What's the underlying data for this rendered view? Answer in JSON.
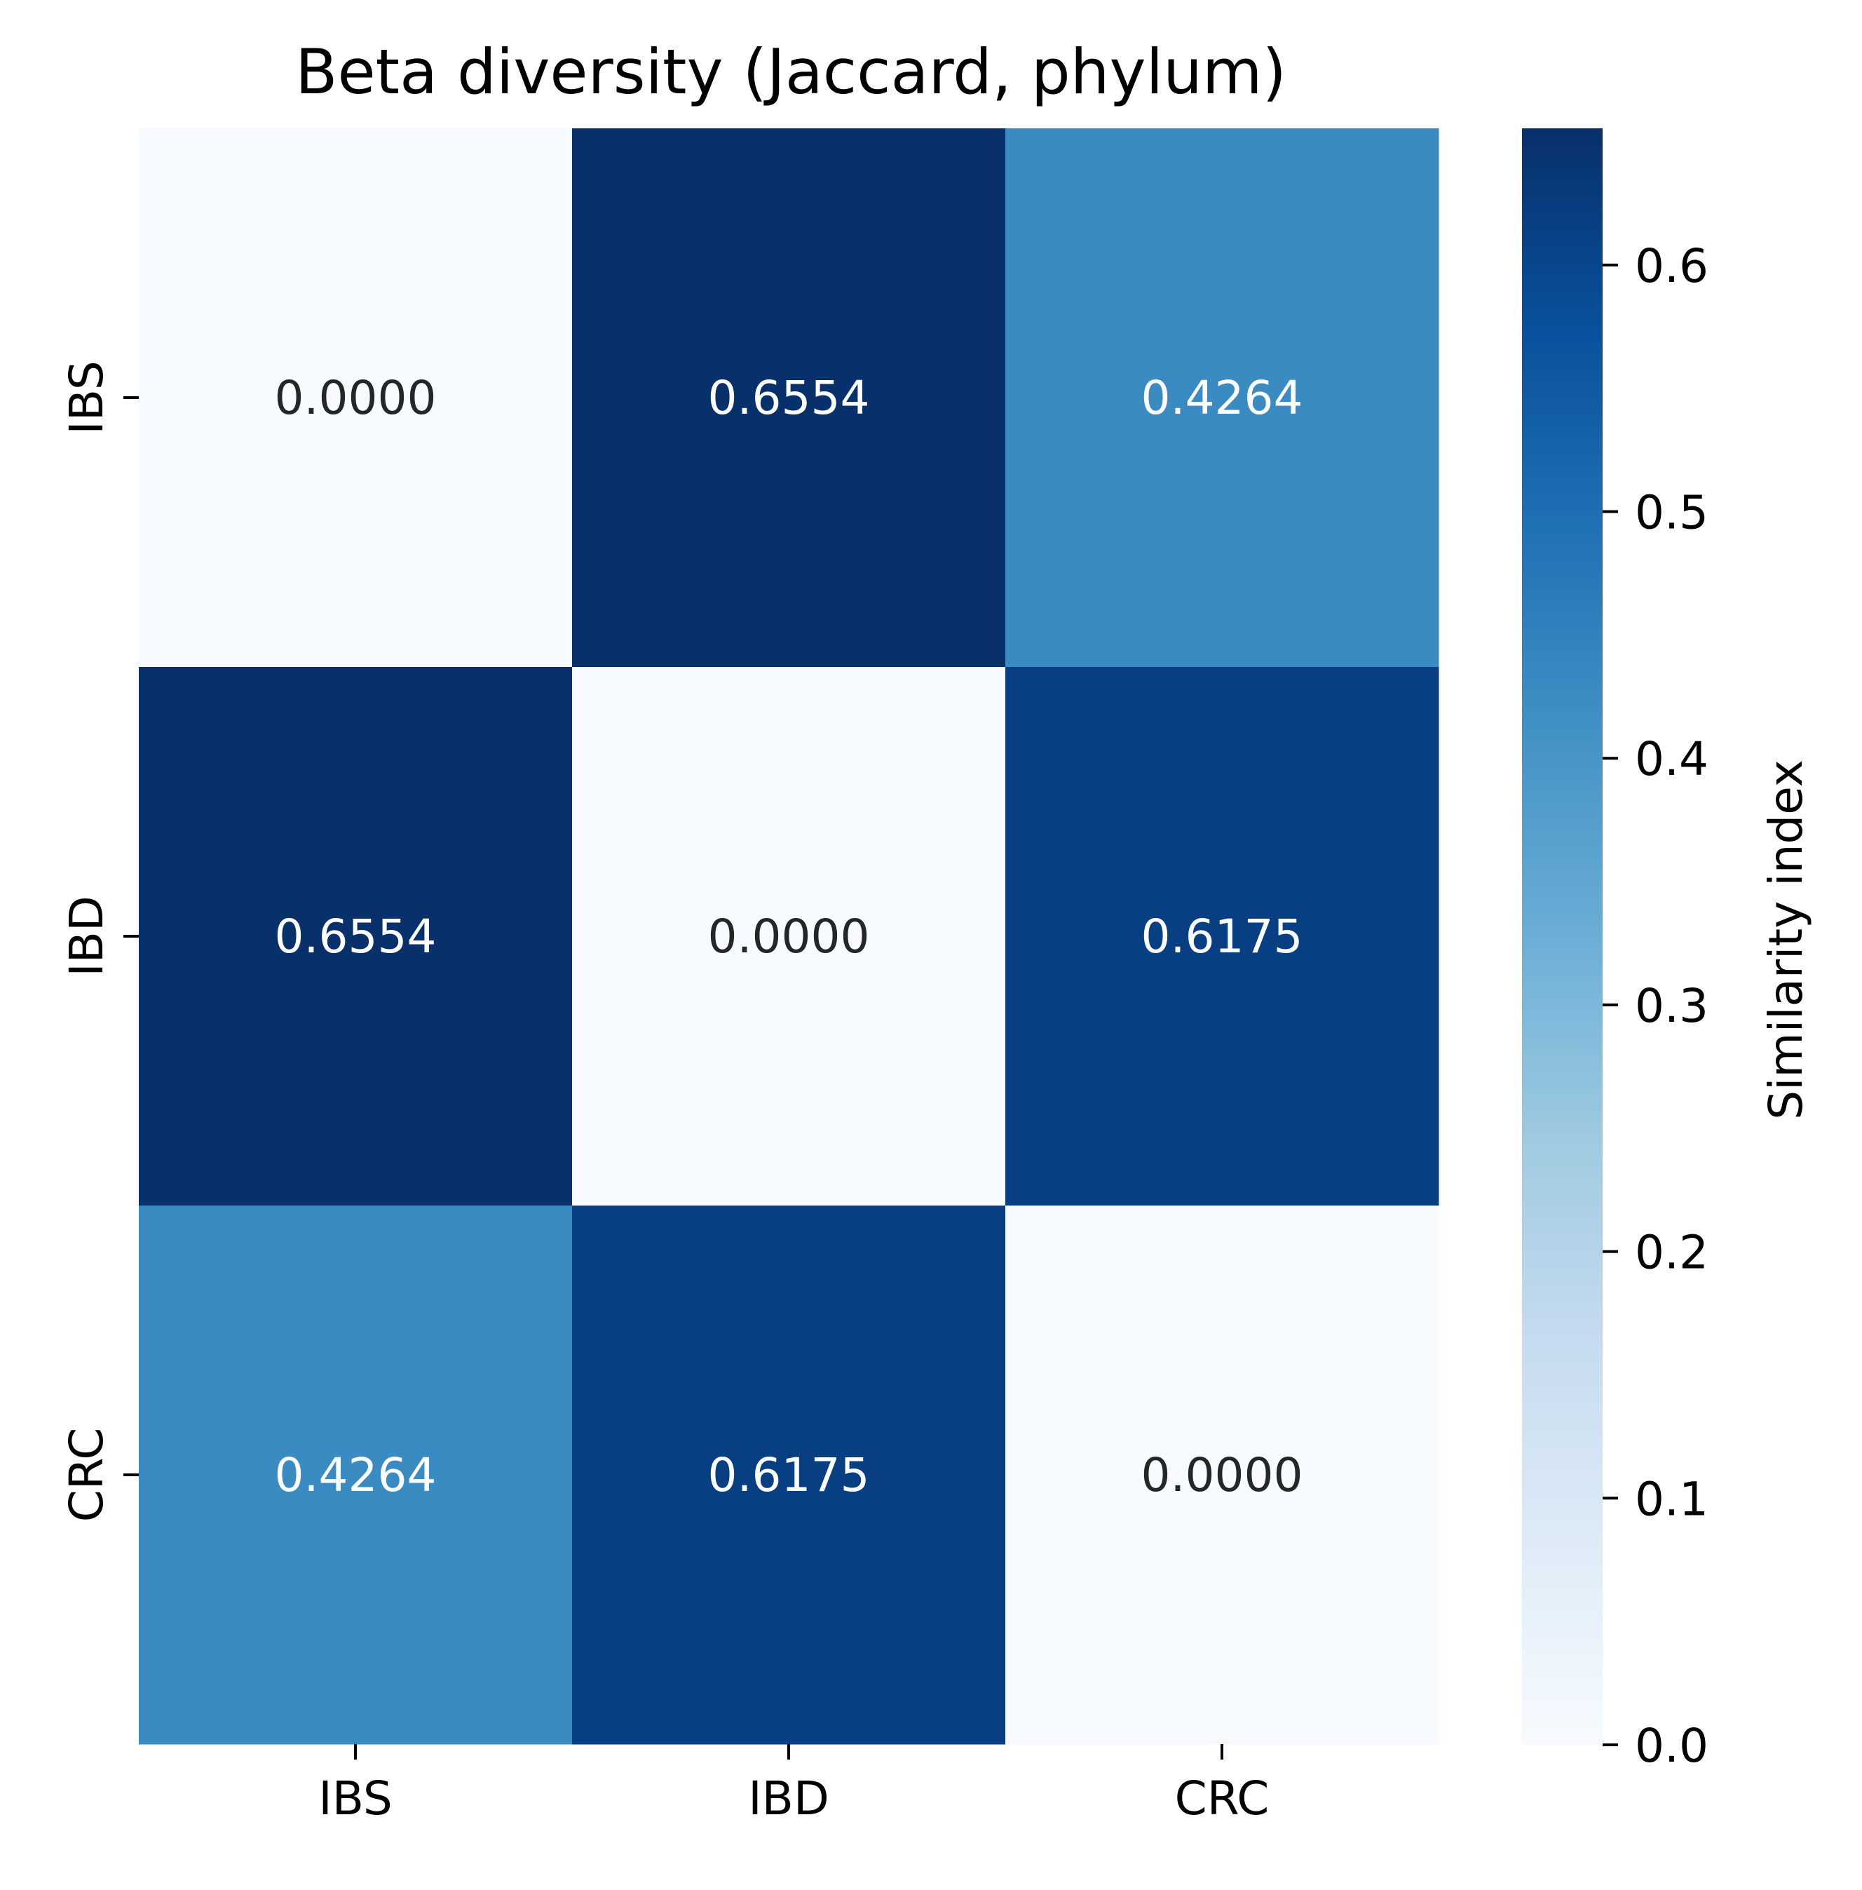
{
  "chart_data": {
    "type": "heatmap",
    "title": "Beta diversity (Jaccard, phylum)",
    "x_categories": [
      "IBS",
      "IBD",
      "CRC"
    ],
    "y_categories": [
      "IBS",
      "IBD",
      "CRC"
    ],
    "values": [
      [
        0.0,
        0.6554,
        0.4264
      ],
      [
        0.6554,
        0.0,
        0.6175
      ],
      [
        0.4264,
        0.6175,
        0.0
      ]
    ],
    "value_format": "0.0000",
    "colormap": "Blues",
    "vmin": 0.0,
    "vmax": 0.6554,
    "colorbar": {
      "label": "Similarity index",
      "ticks": [
        0.0,
        0.1,
        0.2,
        0.3,
        0.4,
        0.5,
        0.6
      ],
      "tick_labels": [
        "0.0",
        "0.1",
        "0.2",
        "0.3",
        "0.4",
        "0.5",
        "0.6"
      ],
      "placement": "right"
    },
    "colors": {
      "dark_text": "#262626",
      "light_text": "#ffffff"
    }
  }
}
